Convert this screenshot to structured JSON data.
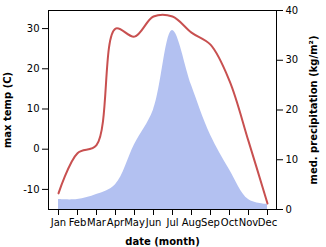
{
  "chart_data": {
    "type": "line",
    "categories": [
      "Jan",
      "Feb",
      "Mar",
      "Apr",
      "May",
      "Jun",
      "Jul",
      "Aug",
      "Sep",
      "Oct",
      "Nov",
      "Dec"
    ],
    "x_label": "date (month)",
    "y_label": "max temp (C)",
    "y2_label": "med. precipitation (kg/m²)",
    "ylim": [
      -15,
      34.5
    ],
    "yticks": [
      -10,
      0,
      10,
      20,
      30
    ],
    "y2lim": [
      0,
      40
    ],
    "y2ticks": [
      0,
      10,
      20,
      30,
      40
    ],
    "series": [
      {
        "name": "med. precipitation",
        "type": "area",
        "axis": "y2",
        "color": "#b3c1f1",
        "values": [
          2,
          2,
          3,
          5,
          13,
          20,
          36,
          25,
          15,
          8,
          2,
          1
        ]
      },
      {
        "name": "max temp",
        "type": "line",
        "color": "#c85050",
        "values": [
          -11,
          -1,
          1,
          30,
          28,
          33,
          33,
          29,
          26,
          17,
          2,
          -13.5
        ]
      }
    ]
  }
}
